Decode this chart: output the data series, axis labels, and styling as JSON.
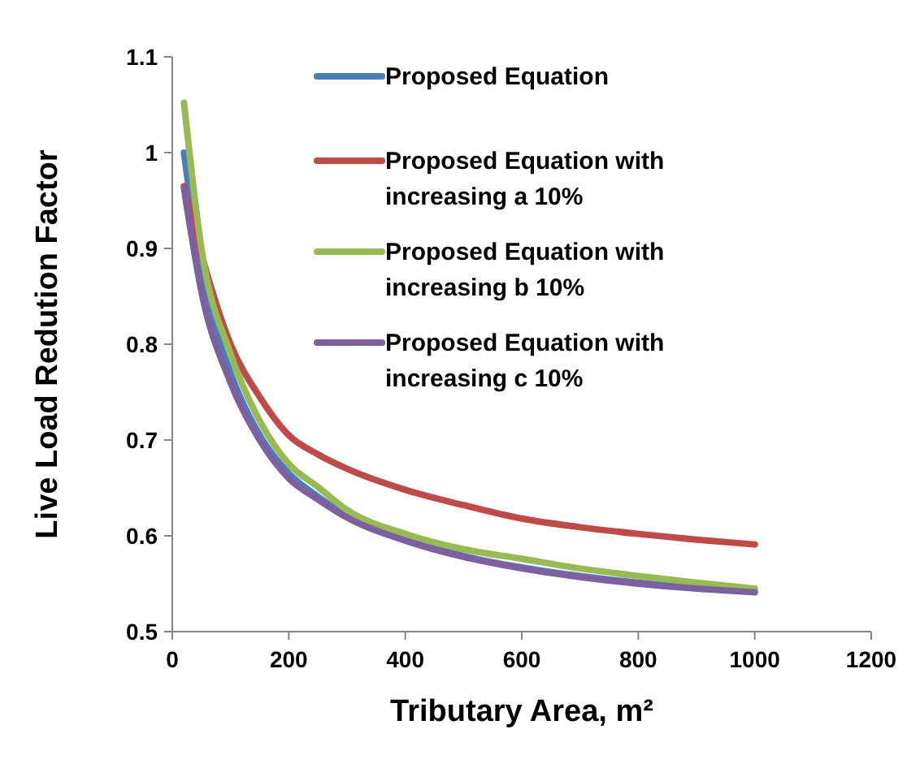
{
  "chart_data": {
    "type": "line",
    "xlabel": "Tributary Area, m²",
    "ylabel": "Live Load Redution Factor",
    "x": [
      20,
      50,
      100,
      150,
      200,
      250,
      300,
      400,
      500,
      600,
      700,
      800,
      900,
      1000
    ],
    "xlim": [
      0,
      1200
    ],
    "xticks": [
      0,
      200,
      400,
      600,
      800,
      1000,
      1200
    ],
    "ylim": [
      0.5,
      1.1
    ],
    "yticks": [
      0.5,
      0.6,
      0.7,
      0.8,
      0.9,
      1,
      1.1
    ],
    "grid": false,
    "legend": "top right",
    "marker": "none",
    "line_style": "solid",
    "series": [
      {
        "name": "Proposed Equation",
        "color": "#4a7ebb",
        "values": [
          1.0,
          0.877,
          0.77,
          0.705,
          0.665,
          0.641,
          0.621,
          0.597,
          0.579,
          0.567,
          0.558,
          0.551,
          0.546,
          0.542
        ]
      },
      {
        "name": "Proposed Equation with increasing a 10%",
        "color": "#be4b48",
        "values": [
          0.965,
          0.894,
          0.8,
          0.745,
          0.705,
          0.685,
          0.67,
          0.648,
          0.632,
          0.618,
          0.609,
          0.602,
          0.596,
          0.591
        ]
      },
      {
        "name": "Proposed Equation with increasing b 10%",
        "color": "#98b954",
        "values": [
          1.052,
          0.9,
          0.79,
          0.72,
          0.675,
          0.651,
          0.627,
          0.602,
          0.586,
          0.576,
          0.566,
          0.558,
          0.551,
          0.545
        ]
      },
      {
        "name": "Proposed Equation with increasing c 10%",
        "color": "#7d60a0",
        "values": [
          0.963,
          0.855,
          0.76,
          0.7,
          0.66,
          0.638,
          0.619,
          0.595,
          0.578,
          0.566,
          0.557,
          0.55,
          0.545,
          0.541
        ]
      }
    ]
  }
}
